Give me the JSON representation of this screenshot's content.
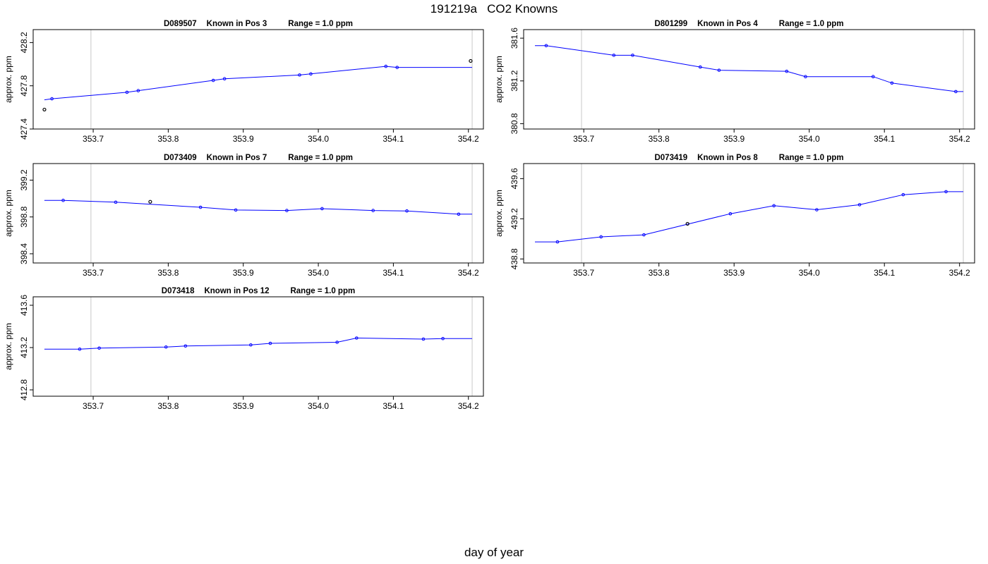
{
  "figure": {
    "title": "191219a   CO2 Knowns",
    "xlabel": "day of year"
  },
  "colors": {
    "series": "#0000ff",
    "flagged": "#000000",
    "vline": "#c8c8c8",
    "axis": "#000000"
  },
  "chart_data": [
    {
      "type": "line",
      "id": "D089507",
      "title_parts": [
        "D089507",
        "Known in Pos 3",
        "Range = 1.0 ppm"
      ],
      "ylabel": "approx. ppm",
      "xlim": [
        353.62,
        354.22
      ],
      "ylim": [
        427.4,
        428.32
      ],
      "xticks": [
        353.7,
        353.8,
        353.9,
        354.0,
        354.1,
        354.2
      ],
      "xticklabels": [
        "353.7",
        "353.8",
        "353.9",
        "354.0",
        "354.1",
        "354.2"
      ],
      "yticks": [
        427.4,
        427.8,
        428.2
      ],
      "yticklabels": [
        "427.4",
        "427.8",
        "428.2"
      ],
      "vlines": [
        353.697,
        354.205
      ],
      "series": [
        {
          "line_x": [
            353.635,
            353.645,
            353.745,
            353.76,
            353.86,
            353.875,
            353.975,
            353.99,
            354.09,
            354.105,
            354.205
          ],
          "line_y": [
            427.67,
            427.68,
            427.74,
            427.755,
            427.85,
            427.865,
            427.9,
            427.91,
            427.98,
            427.97,
            427.97
          ],
          "x": [
            353.645,
            353.745,
            353.76,
            353.86,
            353.875,
            353.975,
            353.99,
            354.09,
            354.105
          ],
          "y": [
            427.68,
            427.74,
            427.755,
            427.85,
            427.865,
            427.9,
            427.91,
            427.98,
            427.97
          ]
        }
      ],
      "flagged": {
        "x": [
          353.635,
          354.203
        ],
        "y": [
          427.58,
          428.03
        ]
      }
    },
    {
      "type": "line",
      "id": "D801299",
      "title_parts": [
        "D801299",
        "Known in Pos 4",
        "Range = 1.0 ppm"
      ],
      "ylabel": "approx. ppm",
      "xlim": [
        353.62,
        354.22
      ],
      "ylim": [
        380.75,
        381.68
      ],
      "xticks": [
        353.7,
        353.8,
        353.9,
        354.0,
        354.1,
        354.2
      ],
      "xticklabels": [
        "353.7",
        "353.8",
        "353.9",
        "354.0",
        "354.1",
        "354.2"
      ],
      "yticks": [
        380.8,
        381.2,
        381.6
      ],
      "yticklabels": [
        "380.8",
        "381.2",
        "381.6"
      ],
      "vlines": [
        353.697,
        354.205
      ],
      "series": [
        {
          "line_x": [
            353.635,
            353.65,
            353.74,
            353.765,
            353.855,
            353.88,
            353.97,
            353.995,
            354.085,
            354.11,
            354.195,
            354.205
          ],
          "line_y": [
            381.53,
            381.53,
            381.44,
            381.44,
            381.33,
            381.3,
            381.29,
            381.24,
            381.24,
            381.18,
            381.1,
            381.1
          ],
          "x": [
            353.65,
            353.74,
            353.765,
            353.855,
            353.88,
            353.97,
            353.995,
            354.085,
            354.11,
            354.195
          ],
          "y": [
            381.53,
            381.44,
            381.44,
            381.33,
            381.3,
            381.29,
            381.24,
            381.24,
            381.18,
            381.1
          ]
        }
      ],
      "flagged": {
        "x": [],
        "y": []
      }
    },
    {
      "type": "line",
      "id": "D073409",
      "title_parts": [
        "D073409",
        "Known in Pos 7",
        "Range = 1.0 ppm"
      ],
      "ylabel": "approx. ppm",
      "xlim": [
        353.62,
        354.22
      ],
      "ylim": [
        398.3,
        399.38
      ],
      "xticks": [
        353.7,
        353.8,
        353.9,
        354.0,
        354.1,
        354.2
      ],
      "xticklabels": [
        "353.7",
        "353.8",
        "353.9",
        "354.0",
        "354.1",
        "354.2"
      ],
      "yticks": [
        398.4,
        398.8,
        399.2
      ],
      "yticklabels": [
        "398.4",
        "398.8",
        "399.2"
      ],
      "vlines": [
        353.697,
        354.205
      ],
      "series": [
        {
          "line_x": [
            353.635,
            353.66,
            353.73,
            353.843,
            353.89,
            353.958,
            354.005,
            354.073,
            354.118,
            354.187,
            354.205
          ],
          "line_y": [
            398.98,
            398.98,
            398.96,
            398.905,
            398.875,
            398.87,
            398.89,
            398.87,
            398.865,
            398.83,
            398.83
          ],
          "x": [
            353.66,
            353.73,
            353.843,
            353.89,
            353.958,
            354.005,
            354.073,
            354.118,
            354.187
          ],
          "y": [
            398.98,
            398.96,
            398.905,
            398.875,
            398.87,
            398.89,
            398.87,
            398.865,
            398.83
          ]
        }
      ],
      "flagged": {
        "x": [
          353.776
        ],
        "y": [
          398.965
        ]
      }
    },
    {
      "type": "line",
      "id": "D073419",
      "title_parts": [
        "D073419",
        "Known in Pos 8",
        "Range = 1.0 ppm"
      ],
      "ylabel": "approx. ppm",
      "xlim": [
        353.62,
        354.22
      ],
      "ylim": [
        438.76,
        439.75
      ],
      "xticks": [
        353.7,
        353.8,
        353.9,
        354.0,
        354.1,
        354.2
      ],
      "xticklabels": [
        "353.7",
        "353.8",
        "353.9",
        "354.0",
        "354.1",
        "354.2"
      ],
      "yticks": [
        438.8,
        439.2,
        439.6
      ],
      "yticklabels": [
        "438.8",
        "439.2",
        "439.6"
      ],
      "vlines": [
        353.697,
        354.205
      ],
      "series": [
        {
          "line_x": [
            353.635,
            353.665,
            353.723,
            353.78,
            353.895,
            353.953,
            354.01,
            354.067,
            354.125,
            354.182,
            354.205
          ],
          "line_y": [
            438.97,
            438.97,
            439.02,
            439.04,
            439.25,
            439.33,
            439.29,
            439.34,
            439.44,
            439.47,
            439.47
          ],
          "x": [
            353.665,
            353.723,
            353.78,
            353.895,
            353.953,
            354.01,
            354.067,
            354.125,
            354.182
          ],
          "y": [
            438.97,
            439.02,
            439.04,
            439.25,
            439.33,
            439.29,
            439.34,
            439.44,
            439.47
          ]
        }
      ],
      "flagged": {
        "x": [
          353.838
        ],
        "y": [
          439.15
        ]
      }
    },
    {
      "type": "line",
      "id": "D073418",
      "title_parts": [
        "D073418",
        "Known in Pos 12",
        "Range = 1.0 ppm"
      ],
      "ylabel": "approx. ppm",
      "xlim": [
        353.62,
        354.22
      ],
      "ylim": [
        412.74,
        413.68
      ],
      "xticks": [
        353.7,
        353.8,
        353.9,
        354.0,
        354.1,
        354.2
      ],
      "xticklabels": [
        "353.7",
        "353.8",
        "353.9",
        "354.0",
        "354.1",
        "354.2"
      ],
      "yticks": [
        412.8,
        413.2,
        413.6
      ],
      "yticklabels": [
        "412.8",
        "413.2",
        "413.6"
      ],
      "vlines": [
        353.697,
        354.205
      ],
      "series": [
        {
          "line_x": [
            353.635,
            353.682,
            353.708,
            353.797,
            353.823,
            353.91,
            353.936,
            354.025,
            354.051,
            354.14,
            354.166,
            354.205
          ],
          "line_y": [
            413.185,
            413.185,
            413.195,
            413.205,
            413.215,
            413.225,
            413.24,
            413.25,
            413.29,
            413.28,
            413.285,
            413.285
          ],
          "x": [
            353.682,
            353.708,
            353.797,
            353.823,
            353.91,
            353.936,
            354.025,
            354.051,
            354.14,
            354.166
          ],
          "y": [
            413.185,
            413.195,
            413.205,
            413.215,
            413.225,
            413.24,
            413.25,
            413.29,
            413.28,
            413.285
          ]
        }
      ],
      "flagged": {
        "x": [],
        "y": []
      }
    }
  ]
}
